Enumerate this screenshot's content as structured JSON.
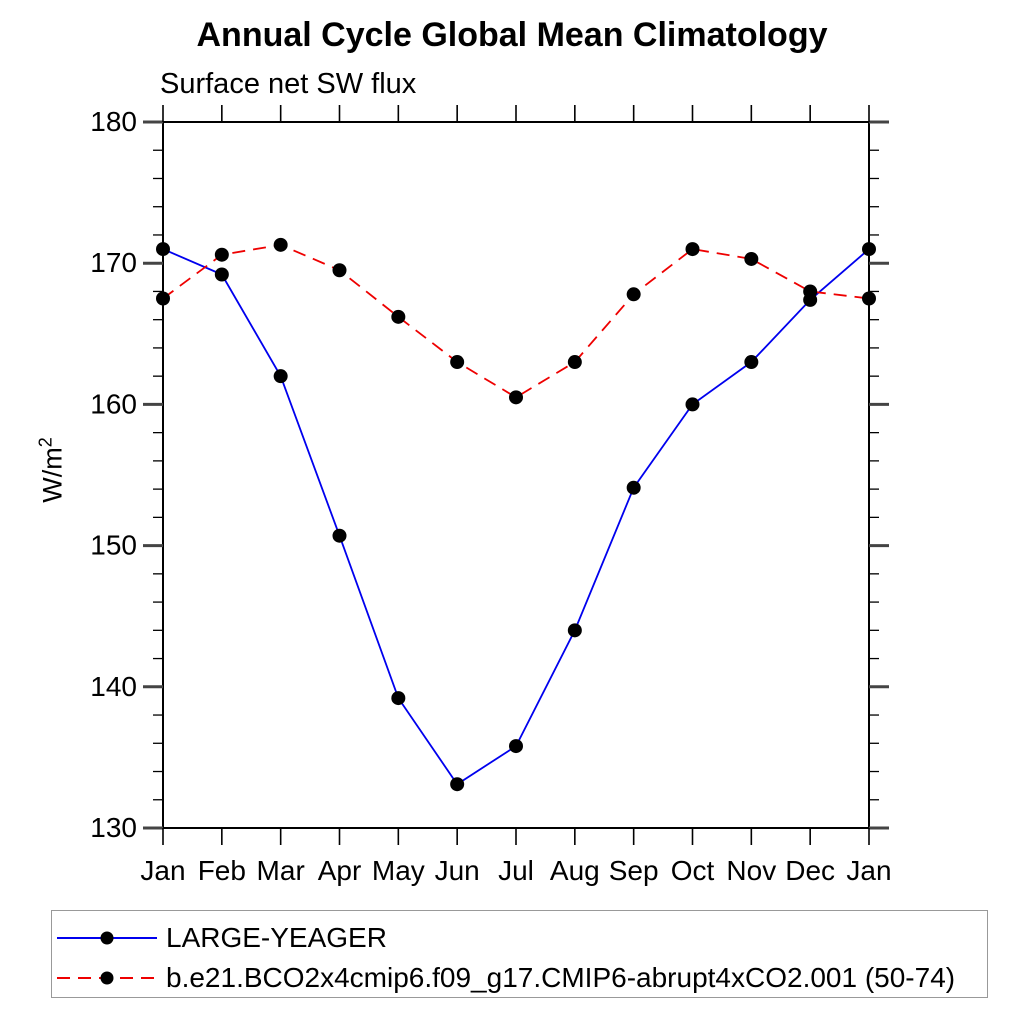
{
  "header": {
    "title": "Annual Cycle Global Mean Climatology",
    "subtitle": "Surface net SW flux"
  },
  "y_axis": {
    "label_base": "W/m",
    "label_exponent": "2"
  },
  "chart_data": {
    "type": "line",
    "title": "Annual Cycle Global Mean Climatology",
    "subtitle": "Surface net SW flux",
    "ylabel": "W/m^2",
    "xlabel": "",
    "categories": [
      "Jan",
      "Feb",
      "Mar",
      "Apr",
      "May",
      "Jun",
      "Jul",
      "Aug",
      "Sep",
      "Oct",
      "Nov",
      "Dec",
      "Jan"
    ],
    "ylim": [
      130,
      180
    ],
    "ytick_major": [
      130,
      140,
      150,
      160,
      170,
      180
    ],
    "ytick_minor_step": 2,
    "grid": false,
    "legend_position": "bottom-box",
    "series": [
      {
        "name": "LARGE-YEAGER",
        "color": "#0000ee",
        "line_style": "solid",
        "marker": "filled-black-circle",
        "values": [
          171.0,
          169.2,
          162.0,
          150.7,
          139.2,
          133.1,
          135.8,
          144.0,
          154.1,
          160.0,
          163.0,
          167.4,
          171.0
        ]
      },
      {
        "name": "b.e21.BCO2x4cmip6.f09_g17.CMIP6-abrupt4xCO2.001 (50-74)",
        "color": "#ee0000",
        "line_style": "dashed",
        "marker": "filled-black-circle",
        "values": [
          167.5,
          170.6,
          171.3,
          169.5,
          166.2,
          163.0,
          160.5,
          163.0,
          167.8,
          171.0,
          170.3,
          168.0,
          167.5
        ]
      }
    ]
  },
  "colors": {
    "axis": "#000000",
    "major_tick": "#444444",
    "minor_tick": "#000000",
    "marker": "#000000",
    "legend_border": "#999999"
  }
}
